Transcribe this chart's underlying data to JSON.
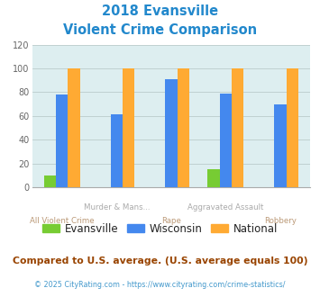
{
  "title_line1": "2018 Evansville",
  "title_line2": "Violent Crime Comparison",
  "title_color": "#2288cc",
  "categories": [
    "All Violent Crime",
    "Murder & Mans...",
    "Rape",
    "Aggravated Assault",
    "Robbery"
  ],
  "series": {
    "Evansville": [
      10,
      0,
      0,
      15,
      0
    ],
    "Wisconsin": [
      78,
      61,
      91,
      79,
      70
    ],
    "National": [
      100,
      100,
      100,
      100,
      100
    ]
  },
  "colors": {
    "Evansville": "#77cc33",
    "Wisconsin": "#4488ee",
    "National": "#ffaa33"
  },
  "ylim": [
    0,
    120
  ],
  "yticks": [
    0,
    20,
    40,
    60,
    80,
    100,
    120
  ],
  "background_color": "#ddeef0",
  "fig_bg_color": "#ffffff",
  "footnote1": "Compared to U.S. average. (U.S. average equals 100)",
  "footnote1_color": "#994400",
  "footnote2": "© 2025 CityRating.com - https://www.cityrating.com/crime-statistics/",
  "footnote2_color": "#4499cc",
  "grid_color": "#bbcccc",
  "cat_label_colors": [
    "#bb9977",
    "#aaaaaa",
    "#bb9977",
    "#aaaaaa",
    "#bb9977"
  ],
  "bar_width": 0.22
}
